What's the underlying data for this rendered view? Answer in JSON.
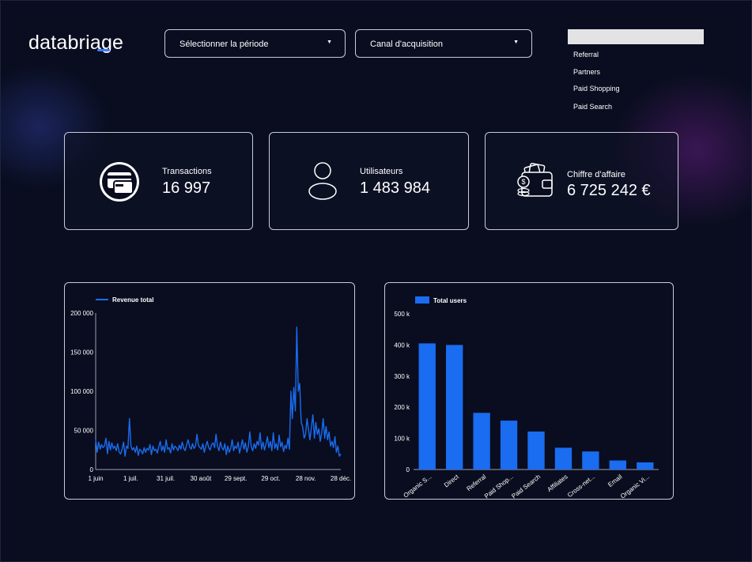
{
  "header": {
    "logo_text": "databriage",
    "period_dropdown": "Sélectionner la période",
    "channel_dropdown": "Canal d'acquisition",
    "channel_list": [
      "Referral",
      "Partners",
      "Paid Shopping",
      "Paid Search"
    ]
  },
  "kpis": [
    {
      "title": "Transactions",
      "value": "16 997",
      "icon": "credit-card-icon"
    },
    {
      "title": "Utilisateurs",
      "value": "1 483 984",
      "icon": "user-icon"
    },
    {
      "title": "Chiffre d'affaire",
      "value": "6 725 242 €",
      "icon": "wallet-icon"
    }
  ],
  "colors": {
    "accent": "#1a6cf0",
    "background": "#090d1f",
    "border": "#c9cbd6"
  },
  "chart_data": [
    {
      "type": "line",
      "series": [
        {
          "name": "Revenue total",
          "values": [
            38000,
            22000,
            35000,
            26000,
            32000,
            28000,
            30000,
            40000,
            20000,
            36000,
            25000,
            34000,
            27000,
            30000,
            24000,
            33000,
            22000,
            20000,
            26000,
            35000,
            17000,
            30000,
            27000,
            65000,
            30000,
            25000,
            28000,
            22000,
            30000,
            18000,
            26000,
            24000,
            20000,
            28000,
            22000,
            27000,
            25000,
            32000,
            19000,
            30000,
            24000,
            26000,
            21000,
            29000,
            36000,
            24000,
            30000,
            22000,
            38000,
            26000,
            28000,
            21000,
            33000,
            25000,
            30000,
            28000,
            24000,
            31000,
            26000,
            35000,
            27000,
            24000,
            32000,
            38000,
            29000,
            26000,
            33000,
            27000,
            30000,
            45000,
            31000,
            28000,
            26000,
            33000,
            22000,
            30000,
            36000,
            28000,
            25000,
            32000,
            34000,
            28000,
            45000,
            30000,
            24000,
            35000,
            28000,
            25000,
            33000,
            19000,
            30000,
            22000,
            27000,
            38000,
            24000,
            30000,
            27000,
            35000,
            21000,
            29000,
            38000,
            26000,
            34000,
            22000,
            30000,
            48000,
            29000,
            24000,
            33000,
            27000,
            36000,
            31000,
            47000,
            26000,
            35000,
            25000,
            32000,
            42000,
            28000,
            36000,
            24000,
            47000,
            27000,
            33000,
            25000,
            44000,
            29000,
            35000,
            23000,
            31000,
            27000,
            40000,
            26000,
            100000,
            65000,
            105000,
            75000,
            182000,
            100000,
            110000,
            60000,
            55000,
            40000,
            45000,
            65000,
            50000,
            38000,
            55000,
            70000,
            40000,
            60000,
            45000,
            52000,
            36000,
            47000,
            65000,
            40000,
            55000,
            38000,
            48000,
            30000,
            36000,
            28000,
            42000,
            22000,
            30000,
            17000,
            20000
          ]
        }
      ],
      "x_tick_labels": [
        "1 juin",
        "1 juil.",
        "31 juil.",
        "30 août",
        "29 sept.",
        "29 oct.",
        "28 nov.",
        "28 déc."
      ],
      "y_tick_labels": [
        "0",
        "50 000",
        "100 000",
        "150 000",
        "200 000"
      ],
      "ylim": [
        0,
        200000
      ],
      "grid": false,
      "legend": "top-left"
    },
    {
      "type": "bar",
      "categories": [
        "Organic S...",
        "Direct",
        "Referral",
        "Paid Shop...",
        "Paid Search",
        "Affiliates",
        "Cross-net...",
        "Email",
        "Organic Vi..."
      ],
      "series": [
        {
          "name": "Total users",
          "values": [
            405000,
            400000,
            182000,
            157000,
            122000,
            70000,
            58000,
            29000,
            23000
          ]
        }
      ],
      "y_tick_labels": [
        "0",
        "100 k",
        "200 k",
        "300 k",
        "400 k",
        "500 k"
      ],
      "ylim": [
        0,
        500000
      ],
      "grid": false,
      "legend": "top-left"
    }
  ]
}
